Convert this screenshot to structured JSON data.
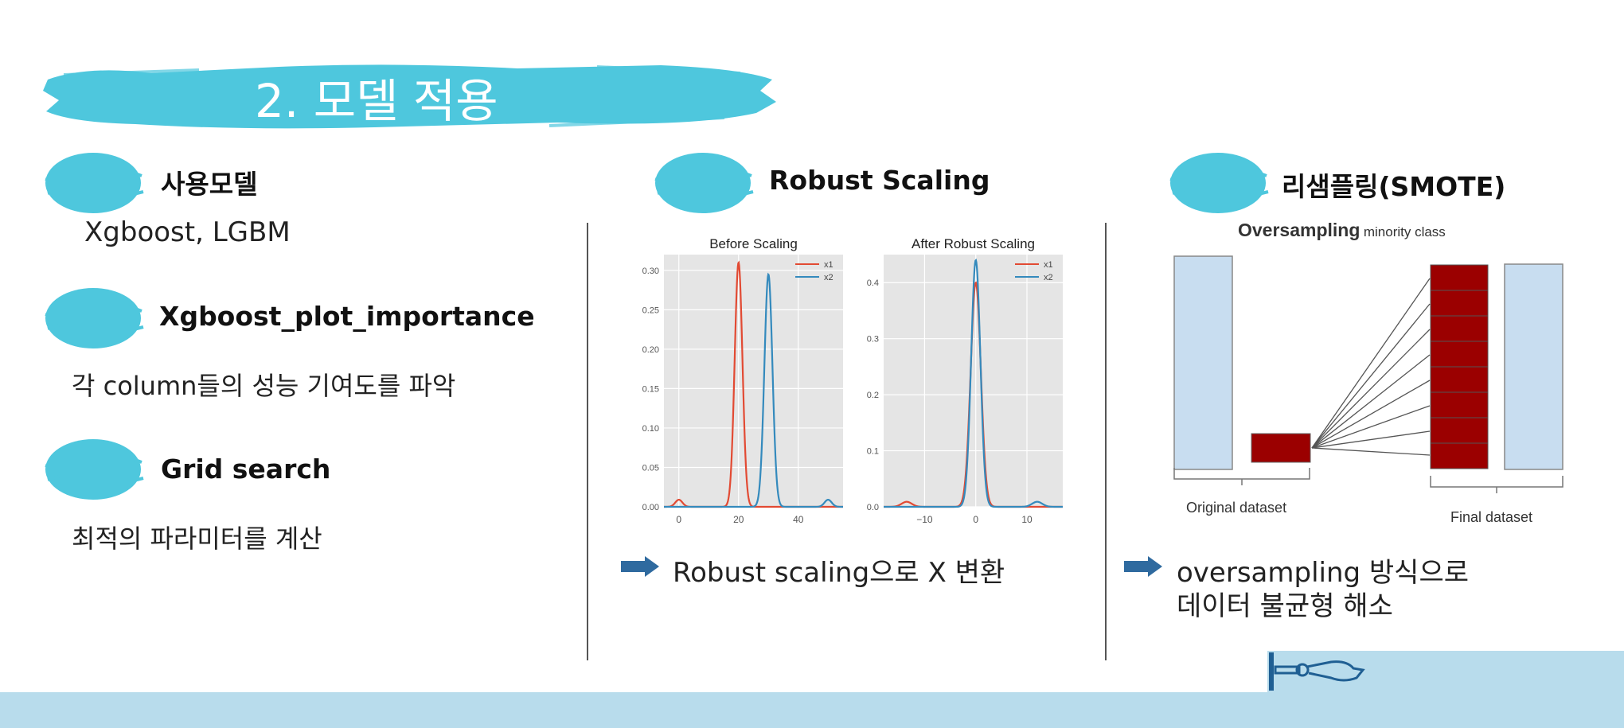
{
  "header": {
    "title": "2. 모델 적용",
    "brush_color": "#4ec7dd"
  },
  "left": {
    "sections": [
      {
        "heading": "사용모델",
        "body": "Xgboost, LGBM"
      },
      {
        "heading": "Xgboost_plot_importance",
        "body": "각 column들의 성능 기여도를 파악"
      },
      {
        "heading": "Grid search",
        "body": "최적의 파라미터를 계산"
      }
    ]
  },
  "middle": {
    "heading": "Robust Scaling",
    "caption": "Robust scaling으로 X 변환"
  },
  "right": {
    "heading": "리샘플링(SMOTE)",
    "figure": {
      "title_bold": "Oversampling",
      "title_small": "minority class",
      "left_label": "Original dataset",
      "right_label": "Final dataset"
    },
    "caption_line1": "oversampling 방식으로",
    "caption_line2": "데이터 불균형 해소"
  },
  "chart_data": [
    {
      "type": "line",
      "title": "Before Scaling",
      "xlim": [
        -5,
        55
      ],
      "ylim": [
        0,
        0.32
      ],
      "xticks": [
        0,
        20,
        40
      ],
      "yticks": [
        0.0,
        0.05,
        0.1,
        0.15,
        0.2,
        0.25,
        0.3
      ],
      "ytick_labels": [
        "0.00",
        "0.05",
        "0.10",
        "0.15",
        "0.20",
        "0.25",
        "0.30"
      ],
      "legend": "top-right",
      "grid": true,
      "series": [
        {
          "name": "x1",
          "color": "#e24a33",
          "peaks": [
            {
              "mu": 20,
              "sigma": 1.3,
              "amp": 0.31
            },
            {
              "mu": 0,
              "sigma": 1.2,
              "amp": 0.009
            }
          ]
        },
        {
          "name": "x2",
          "color": "#348abd",
          "peaks": [
            {
              "mu": 30,
              "sigma": 1.35,
              "amp": 0.295
            },
            {
              "mu": 50,
              "sigma": 1.2,
              "amp": 0.009
            }
          ]
        }
      ]
    },
    {
      "type": "line",
      "title": "After Robust Scaling",
      "xlim": [
        -18,
        17
      ],
      "ylim": [
        0,
        0.45
      ],
      "xticks": [
        -10,
        0,
        10
      ],
      "xtick_labels": [
        "−10",
        "0",
        "10"
      ],
      "yticks": [
        0.0,
        0.1,
        0.2,
        0.3,
        0.4
      ],
      "ytick_labels": [
        "0.0",
        "0.1",
        "0.2",
        "0.3",
        "0.4"
      ],
      "legend": "top-right",
      "grid": true,
      "series": [
        {
          "name": "x1",
          "color": "#e24a33",
          "peaks": [
            {
              "mu": 0,
              "sigma": 1.0,
              "amp": 0.4
            },
            {
              "mu": -13.5,
              "sigma": 1.0,
              "amp": 0.009
            }
          ]
        },
        {
          "name": "x2",
          "color": "#348abd",
          "peaks": [
            {
              "mu": 0,
              "sigma": 0.9,
              "amp": 0.44
            },
            {
              "mu": 12,
              "sigma": 1.0,
              "amp": 0.009
            }
          ]
        }
      ]
    }
  ],
  "colors": {
    "bar_light": "#c8ddf0",
    "bar_dark": "#9b0000",
    "arrow": "#2f6a9f",
    "footer": "#b8dcec"
  }
}
